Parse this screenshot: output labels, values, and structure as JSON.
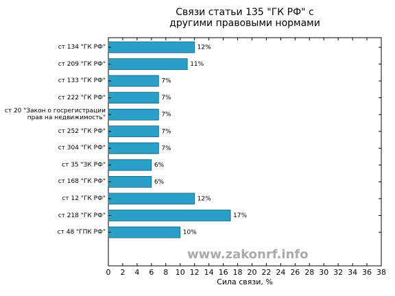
{
  "chart_data": {
    "type": "barh",
    "title": "Связи статьи 135 \"ГК РФ\" с\nдругими правовыми нормами",
    "xlabel": "Сила связи, %",
    "watermark": "www.zakonrf.info",
    "categories": [
      "ст 134 \"ГК РФ\"",
      "ст 209 \"ГК РФ\"",
      "ст 133 \"ГК РФ\"",
      "ст 222 \"ГК РФ\"",
      "ст 20 \"Закон о госрегистрации\nправ на недвижимость\"",
      "ст 252 \"ГК РФ\"",
      "ст 304 \"ГК РФ\"",
      "ст 35 \"ЗК РФ\"",
      "ст 168 \"ГК РФ\"",
      "ст 12 \"ГК РФ\"",
      "ст 218 \"ГК РФ\"",
      "ст 48 \"ГПК РФ\""
    ],
    "values": [
      12,
      11,
      7,
      7,
      7,
      7,
      7,
      6,
      6,
      12,
      17,
      10
    ],
    "value_labels": [
      "12%",
      "11%",
      "7%",
      "7%",
      "7%",
      "7%",
      "7%",
      "6%",
      "6%",
      "12%",
      "17%",
      "10%"
    ],
    "color": "#2aa0c8",
    "xlim": [
      0,
      38
    ],
    "xticks": [
      0,
      2,
      4,
      6,
      8,
      10,
      12,
      14,
      16,
      18,
      20,
      22,
      24,
      26,
      28,
      30,
      32,
      34,
      36,
      38
    ]
  }
}
